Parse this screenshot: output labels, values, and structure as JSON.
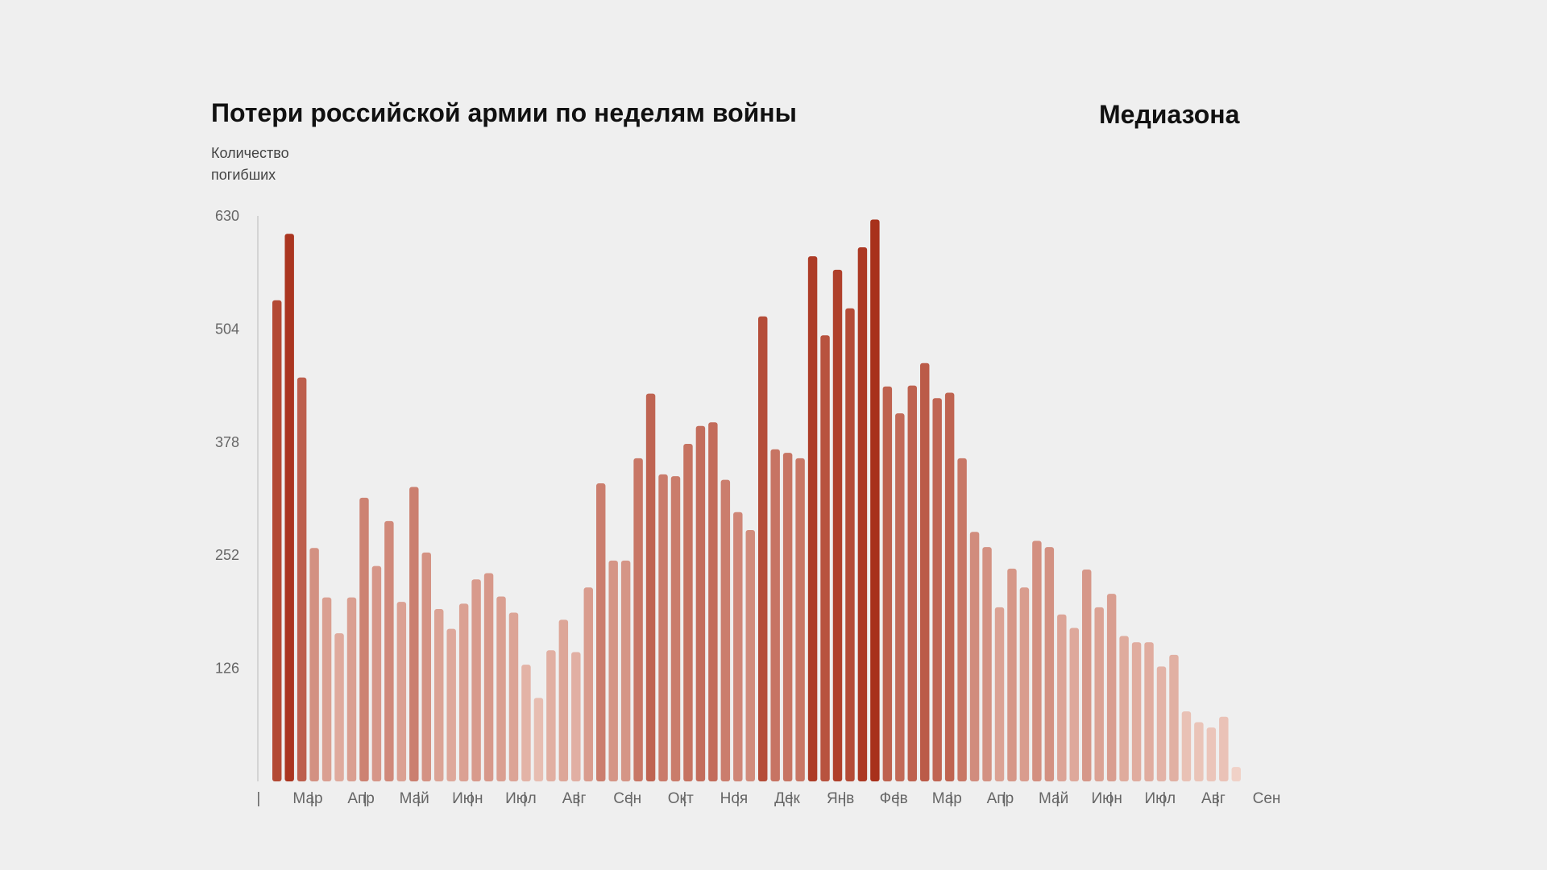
{
  "title": "Потери российской армии по неделям войны",
  "brand": "Медиазона",
  "chart_data": {
    "type": "bar",
    "title": "Потери российской армии по неделям войны",
    "ylabel": [
      "Количество",
      "погибших"
    ],
    "xlabel": "",
    "ylim": [
      0,
      630
    ],
    "yticks": [
      126,
      252,
      378,
      504,
      630
    ],
    "x_separator": "|",
    "xtick_labels": [
      "Мар",
      "Апр",
      "Май",
      "Июн",
      "Июл",
      "Авг",
      "Сен",
      "Окт",
      "Ноя",
      "Дек",
      "Янв",
      "Фев",
      "Мар",
      "Апр",
      "Май",
      "Июн",
      "Июл",
      "Авг",
      "Сен"
    ],
    "series": [
      {
        "name": "Количество погибших",
        "values": [
          536,
          610,
          450,
          260,
          205,
          165,
          205,
          316,
          240,
          290,
          200,
          328,
          255,
          192,
          170,
          198,
          225,
          232,
          206,
          188,
          130,
          93,
          146,
          180,
          144,
          216,
          332,
          246,
          246,
          360,
          432,
          342,
          340,
          376,
          396,
          400,
          336,
          300,
          280,
          518,
          370,
          366,
          360,
          585,
          497,
          570,
          527,
          595,
          626,
          440,
          410,
          441,
          466,
          427,
          433,
          360,
          278,
          261,
          194,
          237,
          216,
          268,
          261,
          186,
          171,
          236,
          194,
          209,
          162,
          155,
          155,
          128,
          141,
          78,
          66,
          60,
          72,
          16
        ]
      }
    ],
    "colors": {
      "bar_high": "#a8301a",
      "bar_low": "#f2d5cb",
      "axis": "#cccccc",
      "tick_text": "#666666",
      "background": "#efefef"
    }
  }
}
